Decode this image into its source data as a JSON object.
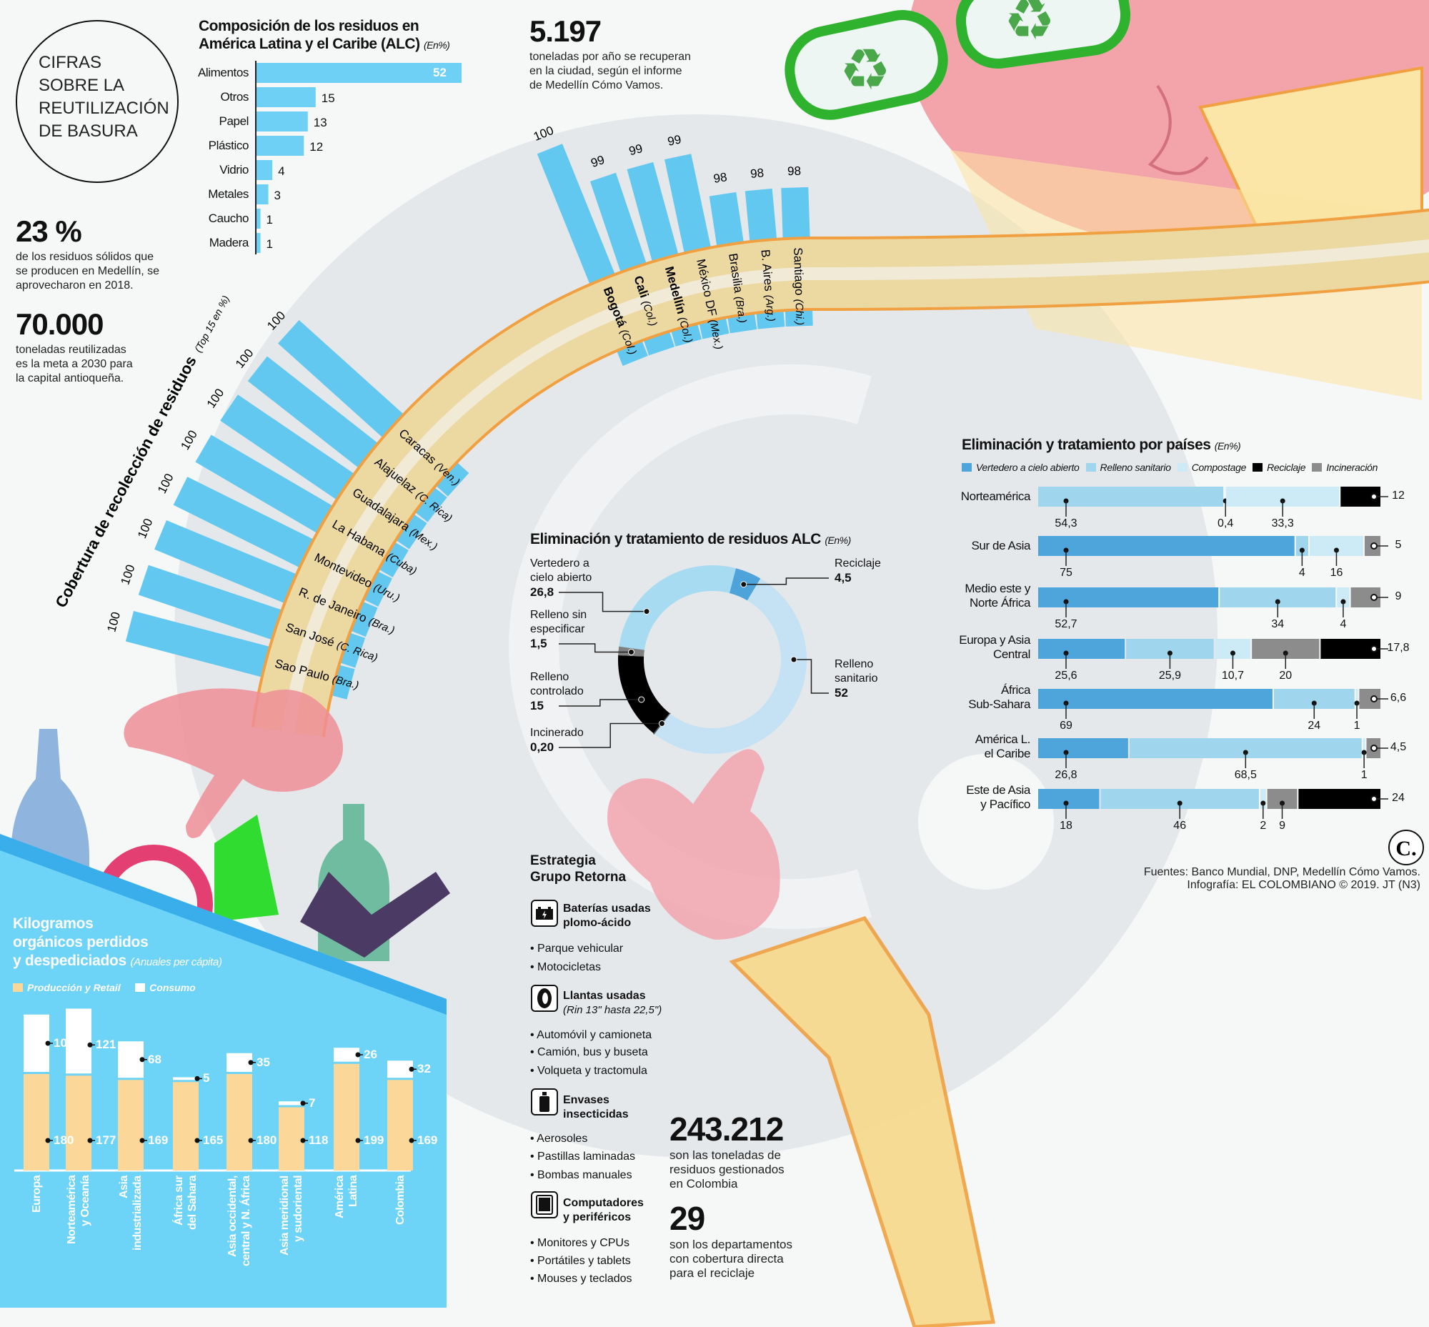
{
  "header": {
    "title_lines": [
      "CIFRAS",
      "SOBRE LA",
      "REUTILIZACIÓN",
      "DE BASURA"
    ]
  },
  "stats": {
    "pct_used": {
      "value": "23 %",
      "text": [
        "de los residuos sólidos que",
        "se producen en Medellín, se",
        "aprovecharon en 2018."
      ]
    },
    "goal": {
      "value": "70.000",
      "text": [
        "toneladas reutilizadas",
        "es la meta a 2030 para",
        "la capital antioqueña."
      ]
    },
    "recovered": {
      "value": "5.197",
      "text": [
        "toneladas por año se recuperan",
        "en la ciudad, según el informe",
        "de Medellín Cómo Vamos."
      ]
    },
    "managed": {
      "value": "243.212",
      "text": [
        "son las toneladas de",
        "residuos gestionados",
        "en Colombia"
      ]
    },
    "departments": {
      "value": "29",
      "text": [
        "son los departamentos",
        "con cobertura directa",
        "para el reciclaje"
      ]
    }
  },
  "strategy": {
    "title": [
      "Estrategia",
      "Grupo Retorna"
    ],
    "groups": [
      {
        "icon": "battery-icon",
        "title": [
          "Baterías usadas",
          "plomo-ácido"
        ],
        "subtitle": "",
        "items": [
          "• Parque vehicular",
          "• Motocicletas"
        ]
      },
      {
        "icon": "tire-icon",
        "title": [
          "Llantas usadas",
          ""
        ],
        "subtitle": "(Rin 13\" hasta 22,5\")",
        "items": [
          "• Automóvil y camioneta",
          "• Camión, bus y buseta",
          "• Volqueta y tractomula"
        ]
      },
      {
        "icon": "spray-can-icon",
        "title": [
          "Envases",
          "insecticidas"
        ],
        "subtitle": "",
        "items": [
          "• Aerosoles",
          "• Pastillas laminadas",
          "• Bombas manuales"
        ]
      },
      {
        "icon": "computer-icon",
        "title": [
          "Computadores",
          "y periféricos"
        ],
        "subtitle": "",
        "items": [
          "• Monitores y CPUs",
          "• Portátiles y tablets",
          "• Mouses y teclados"
        ]
      }
    ]
  },
  "footer": {
    "logo": "C.",
    "sources": "Fuentes: Banco Mundial, DNP, Medellín Cómo Vamos.",
    "credit": "Infografía: EL COLOMBIANO © 2019. JT (N3)"
  },
  "colors": {
    "bar_cyan": "#62c8f0",
    "vertedero": "#4ea5dc",
    "relleno_sanitario": "#9fd6ee",
    "compostage": "#cdeaf7",
    "reciclaje": "#000000",
    "incineracion": "#8c8c8c",
    "produccion": "#fbd89a",
    "consumo": "#ffffff",
    "panel_blue": "#6dd3f7",
    "arm_tan": "#ecd9a2",
    "arm_outline": "#f0a040"
  },
  "chart_data": [
    {
      "type": "bar",
      "orientation": "horizontal",
      "title_lines": [
        "Composición de los residuos en",
        "América Latina y el Caribe (ALC)"
      ],
      "unit": "(En%)",
      "categories": [
        "Alimentos",
        "Otros",
        "Papel",
        "Plástico",
        "Vidrio",
        "Metales",
        "Caucho",
        "Madera"
      ],
      "values": [
        52,
        15,
        13,
        12,
        4,
        3,
        1,
        1
      ],
      "value_labels": [
        "52",
        "15",
        "13",
        "12",
        "4",
        "3",
        "1",
        "1"
      ]
    },
    {
      "type": "bar",
      "layout": "radial",
      "title": "Cobertura de recolección de residuos",
      "unit": "(Top 15 en %)",
      "left_arm": [
        {
          "city": "Caracas",
          "country": "(Ven.)",
          "value": 100,
          "bold": false
        },
        {
          "city": "Alajuelaz",
          "country": "(C. Rica)",
          "value": 100,
          "bold": false
        },
        {
          "city": "Guadalajara",
          "country": "(Mex.)",
          "value": 100,
          "bold": false
        },
        {
          "city": "La Habana",
          "country": "(Cuba)",
          "value": 100,
          "bold": false
        },
        {
          "city": "Montevideo",
          "country": "(Uru.)",
          "value": 100,
          "bold": false
        },
        {
          "city": "R. de Janeiro",
          "country": "(Bra.)",
          "value": 100,
          "bold": false
        },
        {
          "city": "San José",
          "country": "(C. Rica)",
          "value": 100,
          "bold": false
        },
        {
          "city": "Sao Paulo",
          "country": "(Bra.)",
          "value": 100,
          "bold": false
        }
      ],
      "top_arm": [
        {
          "city": "Bogotá",
          "country": "(Col.)",
          "value": 100,
          "bold": true
        },
        {
          "city": "Cali",
          "country": "(Col.)",
          "value": 99,
          "bold": true
        },
        {
          "city": "Medellín",
          "country": "(Col.)",
          "value": 99,
          "bold": true
        },
        {
          "city": "México DF",
          "country": "(Mex.)",
          "value": 99,
          "bold": false
        },
        {
          "city": "Brasilia",
          "country": "(Bra.)",
          "value": 98,
          "bold": false
        },
        {
          "city": "B. Aires",
          "country": "(Arg.)",
          "value": 98,
          "bold": false
        },
        {
          "city": "Santiago",
          "country": "(Chi.)",
          "value": 98,
          "bold": false
        }
      ]
    },
    {
      "type": "pie",
      "style": "donut",
      "title": "Eliminación y tratamiento de residuos ALC",
      "unit": "(En%)",
      "slices": [
        {
          "label": [
            "Vertedero a",
            "cielo abierto"
          ],
          "value": 26.8,
          "value_label": "26,8",
          "color": "#a6dbf1"
        },
        {
          "label": [
            "Reciclaje"
          ],
          "value": 4.5,
          "value_label": "4,5",
          "color": "#4ea3da"
        },
        {
          "label": [
            "Relleno",
            "sanitario"
          ],
          "value": 52,
          "value_label": "52",
          "color": "#c4e2f3"
        },
        {
          "label": [
            "Incinerado"
          ],
          "value": 0.2,
          "value_label": "0,20",
          "color": "#555555"
        },
        {
          "label": [
            "Relleno",
            "controlado"
          ],
          "value": 15,
          "value_label": "15",
          "color": "#000000"
        },
        {
          "label": [
            "Relleno sin",
            "especificar"
          ],
          "value": 1.5,
          "value_label": "1,5",
          "color": "#808080"
        }
      ]
    },
    {
      "type": "bar",
      "orientation": "horizontal",
      "stacked": true,
      "title": "Eliminación y tratamiento por países",
      "unit": "(En%)",
      "legend": [
        "Vertedero a cielo abierto",
        "Relleno sanitario",
        "Compostage",
        "Reciclaje",
        "Incineración"
      ],
      "legend_colors": [
        "#4ea5dc",
        "#9fd6ee",
        "#cdeaf7",
        "#000000",
        "#8c8c8c"
      ],
      "legend_position": "top",
      "rows": [
        {
          "label": [
            "Norteamérica"
          ],
          "segments": [
            {
              "category": "Relleno sanitario",
              "value": 54.3,
              "label": "54,3"
            },
            {
              "category": "",
              "value": 0.4,
              "label": "0,4"
            },
            {
              "category": "Compostage",
              "value": 33.3,
              "label": "33,3"
            },
            {
              "category": "Reciclaje",
              "value": 12,
              "label": "12"
            }
          ]
        },
        {
          "label": [
            "Sur de Asia"
          ],
          "segments": [
            {
              "category": "Vertedero a cielo abierto",
              "value": 75,
              "label": "75"
            },
            {
              "category": "Relleno sanitario",
              "value": 4,
              "label": "4"
            },
            {
              "category": "Compostage",
              "value": 16,
              "label": "16"
            },
            {
              "category": "Incineración",
              "value": 5,
              "label": "5"
            }
          ]
        },
        {
          "label": [
            "Medio este y",
            "Norte África"
          ],
          "segments": [
            {
              "category": "Vertedero a cielo abierto",
              "value": 52.7,
              "label": "52,7"
            },
            {
              "category": "Relleno sanitario",
              "value": 34,
              "label": "34"
            },
            {
              "category": "Compostage",
              "value": 4,
              "label": "4"
            },
            {
              "category": "Incineración",
              "value": 9,
              "label": "9"
            }
          ]
        },
        {
          "label": [
            "Europa y Asia",
            "Central"
          ],
          "segments": [
            {
              "category": "Vertedero a cielo abierto",
              "value": 25.6,
              "label": "25,6"
            },
            {
              "category": "Relleno sanitario",
              "value": 25.9,
              "label": "25,9"
            },
            {
              "category": "Compostage",
              "value": 10.7,
              "label": "10,7"
            },
            {
              "category": "Incineración",
              "value": 20,
              "label": "20"
            },
            {
              "category": "Reciclaje",
              "value": 17.8,
              "label": "17,8"
            }
          ]
        },
        {
          "label": [
            "África",
            "Sub-Sahara"
          ],
          "segments": [
            {
              "category": "Vertedero a cielo abierto",
              "value": 69,
              "label": "69"
            },
            {
              "category": "Relleno sanitario",
              "value": 24,
              "label": "24"
            },
            {
              "category": "Compostage",
              "value": 1,
              "label": "1"
            },
            {
              "category": "Incineración",
              "value": 6.6,
              "label": "6,6"
            }
          ]
        },
        {
          "label": [
            "América L.",
            "el Caribe"
          ],
          "segments": [
            {
              "category": "Vertedero a cielo abierto",
              "value": 26.8,
              "label": "26,8"
            },
            {
              "category": "Relleno sanitario",
              "value": 68.5,
              "label": "68,5"
            },
            {
              "category": "Compostage",
              "value": 1,
              "label": "1"
            },
            {
              "category": "Incineración",
              "value": 4.5,
              "label": "4,5"
            }
          ]
        },
        {
          "label": [
            "Este de Asia",
            "y Pacífico"
          ],
          "segments": [
            {
              "category": "Vertedero a cielo abierto",
              "value": 18,
              "label": "18"
            },
            {
              "category": "Relleno sanitario",
              "value": 46,
              "label": "46"
            },
            {
              "category": "Compostage",
              "value": 2,
              "label": "2"
            },
            {
              "category": "Incineración",
              "value": 9,
              "label": "9"
            },
            {
              "category": "Reciclaje",
              "value": 24,
              "label": "24"
            }
          ]
        }
      ]
    },
    {
      "type": "bar",
      "stacked": true,
      "title_lines": [
        "Kilogramos",
        "orgánicos perdidos",
        "y despediciados"
      ],
      "unit": "(Anuales per cápita)",
      "legend": [
        "Producción y Retail",
        "Consumo"
      ],
      "legend_position": "top-left",
      "categories": [
        [
          "Europa"
        ],
        [
          "Norteamérica",
          "y Oceanía"
        ],
        [
          "Asia",
          "industrializada"
        ],
        [
          "África sur",
          "del Sahara"
        ],
        [
          "Asia occidental,",
          "central y N. África"
        ],
        [
          "Asia meridional",
          "y sudoriental"
        ],
        [
          "América",
          "Latina"
        ],
        [
          "Colombia"
        ]
      ],
      "series": [
        {
          "name": "Producción y Retail",
          "values": [
            180,
            177,
            169,
            165,
            180,
            118,
            199,
            169
          ]
        },
        {
          "name": "Consumo",
          "values": [
            107,
            121,
            68,
            5,
            35,
            7,
            26,
            32
          ]
        }
      ]
    }
  ]
}
